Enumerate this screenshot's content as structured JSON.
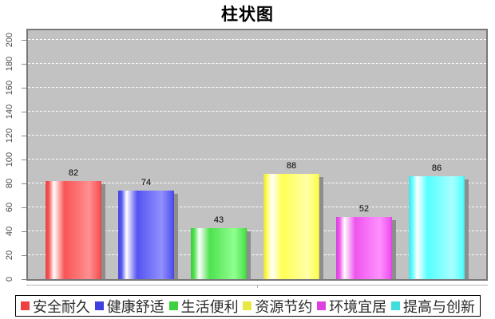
{
  "chart_data": {
    "type": "bar",
    "title": "柱状图",
    "categories": [
      "安全耐久",
      "健康舒适",
      "生活便利",
      "资源节约",
      "环境宜居",
      "提高与创新"
    ],
    "values": [
      82,
      74,
      43,
      88,
      52,
      86
    ],
    "y_ticks": [
      0,
      20,
      40,
      60,
      80,
      100,
      120,
      140,
      160,
      180,
      200
    ],
    "ylim": [
      0,
      200
    ],
    "xlabel": "",
    "ylabel": "",
    "grid": "horizontal dashed white",
    "legend_position": "bottom",
    "plot_background": "#c2c2c2",
    "bar_styles": [
      {
        "main": "#f85454",
        "light": "#ff9090",
        "edge": "#e04545",
        "swatch": "#ee4040"
      },
      {
        "main": "#5454f0",
        "light": "#9090ff",
        "edge": "#4545d8",
        "swatch": "#4040e0"
      },
      {
        "main": "#4ee24e",
        "light": "#90ff90",
        "edge": "#3fc83f",
        "swatch": "#3fd03f"
      },
      {
        "main": "#ffff52",
        "light": "#ffffa8",
        "edge": "#e0e04a",
        "swatch": "#e8e840"
      },
      {
        "main": "#ee54ee",
        "light": "#ff90ff",
        "edge": "#d545d5",
        "swatch": "#dd40dd"
      },
      {
        "main": "#55ffff",
        "light": "#a8ffff",
        "edge": "#48e0e0",
        "swatch": "#40dddd"
      }
    ],
    "shadow_color": "#8d8d8d",
    "value_label_color": "#000000"
  }
}
